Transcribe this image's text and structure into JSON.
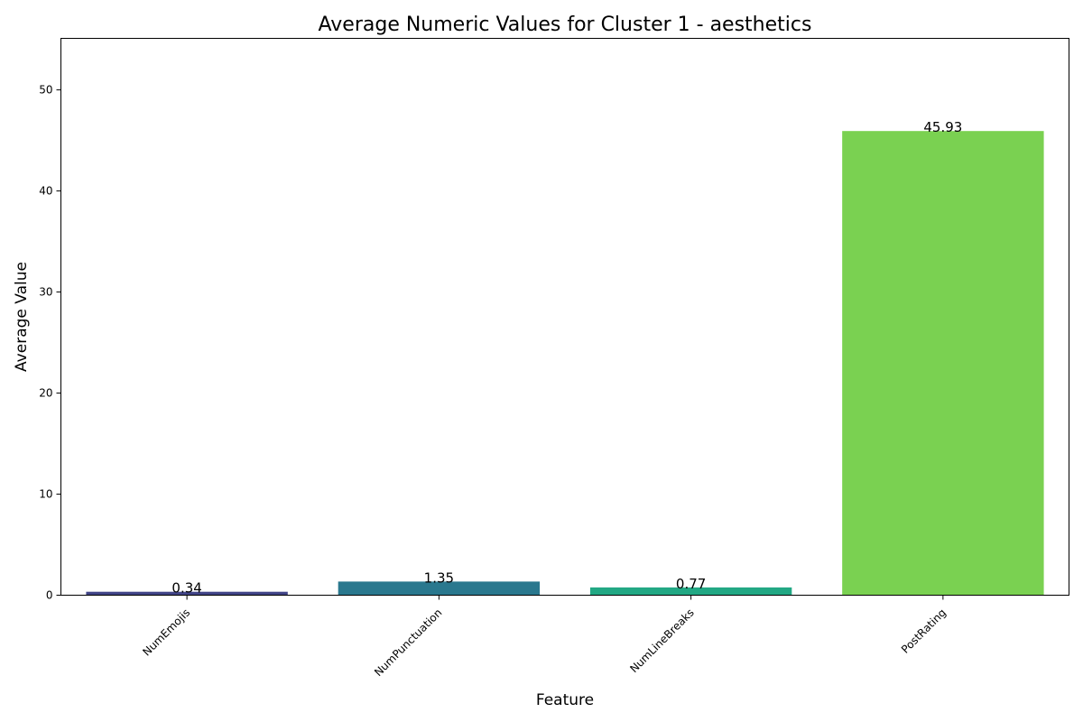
{
  "chart_data": {
    "type": "bar",
    "title": "Average Numeric Values for Cluster 1 - aesthetics",
    "xlabel": "Feature",
    "ylabel": "Average Value",
    "categories": [
      "NumEmojis",
      "NumPunctuation",
      "NumLineBreaks",
      "PostRating"
    ],
    "values": [
      0.34,
      1.35,
      0.77,
      45.93
    ],
    "value_labels": [
      "0.34",
      "1.35",
      "0.77",
      "45.93"
    ],
    "colors": [
      "#414487",
      "#2a788e",
      "#22a884",
      "#7ad151"
    ],
    "ylim": [
      0,
      55.1
    ],
    "yticks": [
      0,
      10,
      20,
      30,
      40,
      50
    ],
    "grid": false,
    "legend": "none"
  }
}
